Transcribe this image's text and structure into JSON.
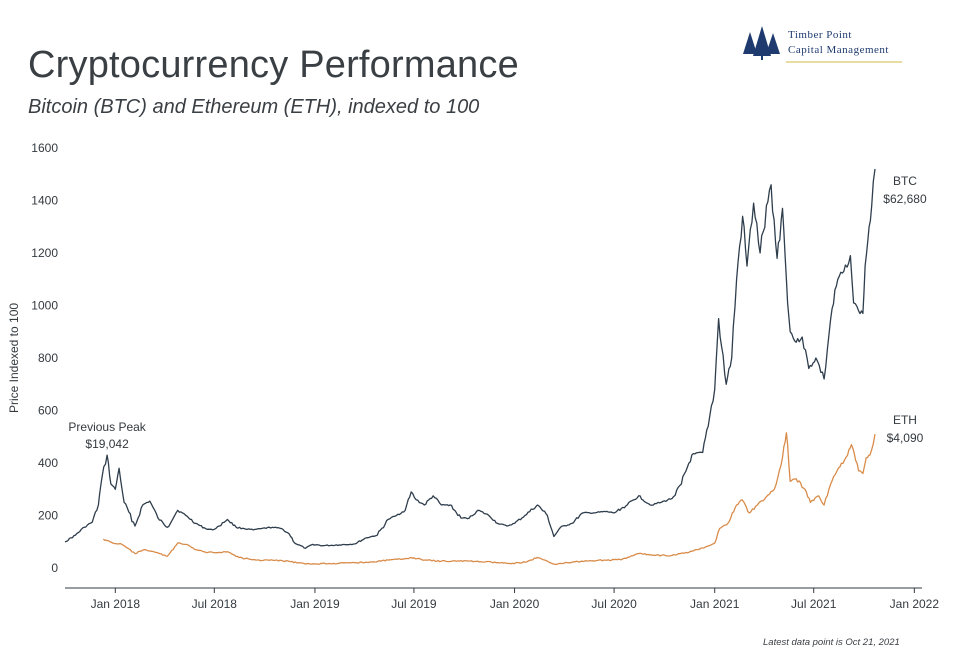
{
  "header": {
    "title": "Cryptocurrency Performance",
    "subtitle": "Bitcoin (BTC) and Ethereum (ETH), indexed to 100"
  },
  "logo": {
    "line1": "Timber Point",
    "line2": "Capital Management",
    "color": "#1e3a6e"
  },
  "footnote": "Latest data point is Oct 21, 2021",
  "chart_data": {
    "type": "line",
    "ylabel": "Price Indexed to 100",
    "xlabel": "",
    "ylim": [
      0,
      1600
    ],
    "yticks": [
      0,
      200,
      400,
      600,
      800,
      1000,
      1200,
      1400,
      1600
    ],
    "xlim": [
      "2017-10-01",
      "2022-01-15"
    ],
    "xticks": [
      {
        "date": "2018-01-01",
        "label": "Jan 2018"
      },
      {
        "date": "2018-07-01",
        "label": "Jul 2018"
      },
      {
        "date": "2019-01-01",
        "label": "Jan 2019"
      },
      {
        "date": "2019-07-01",
        "label": "Jul 2019"
      },
      {
        "date": "2020-01-01",
        "label": "Jan 2020"
      },
      {
        "date": "2020-07-01",
        "label": "Jul 2020"
      },
      {
        "date": "2021-01-01",
        "label": "Jan 2021"
      },
      {
        "date": "2021-07-01",
        "label": "Jul 2021"
      },
      {
        "date": "2022-01-01",
        "label": "Jan 2022"
      }
    ],
    "grid": false,
    "series": [
      {
        "name": "BTC",
        "end_label": "$62,680",
        "color": "#2f3e4d",
        "points": [
          [
            "2017-10-01",
            100
          ],
          [
            "2017-10-20",
            125
          ],
          [
            "2017-11-05",
            155
          ],
          [
            "2017-11-20",
            175
          ],
          [
            "2017-12-01",
            240
          ],
          [
            "2017-12-08",
            350
          ],
          [
            "2017-12-17",
            430
          ],
          [
            "2017-12-24",
            320
          ],
          [
            "2018-01-01",
            300
          ],
          [
            "2018-01-08",
            380
          ],
          [
            "2018-01-17",
            250
          ],
          [
            "2018-02-06",
            160
          ],
          [
            "2018-02-20",
            240
          ],
          [
            "2018-03-05",
            255
          ],
          [
            "2018-03-20",
            190
          ],
          [
            "2018-04-06",
            155
          ],
          [
            "2018-04-25",
            220
          ],
          [
            "2018-05-10",
            200
          ],
          [
            "2018-05-28",
            170
          ],
          [
            "2018-06-15",
            150
          ],
          [
            "2018-06-28",
            145
          ],
          [
            "2018-07-10",
            160
          ],
          [
            "2018-07-25",
            185
          ],
          [
            "2018-08-10",
            155
          ],
          [
            "2018-08-25",
            150
          ],
          [
            "2018-09-10",
            145
          ],
          [
            "2018-09-25",
            150
          ],
          [
            "2018-10-15",
            155
          ],
          [
            "2018-11-01",
            150
          ],
          [
            "2018-11-15",
            130
          ],
          [
            "2018-11-25",
            95
          ],
          [
            "2018-12-15",
            75
          ],
          [
            "2018-12-28",
            90
          ],
          [
            "2019-01-15",
            85
          ],
          [
            "2019-02-15",
            88
          ],
          [
            "2019-03-15",
            92
          ],
          [
            "2019-04-05",
            115
          ],
          [
            "2019-04-25",
            125
          ],
          [
            "2019-05-15",
            185
          ],
          [
            "2019-05-30",
            200
          ],
          [
            "2019-06-15",
            220
          ],
          [
            "2019-06-26",
            290
          ],
          [
            "2019-07-05",
            260
          ],
          [
            "2019-07-20",
            240
          ],
          [
            "2019-08-05",
            275
          ],
          [
            "2019-08-20",
            240
          ],
          [
            "2019-09-05",
            240
          ],
          [
            "2019-09-25",
            190
          ],
          [
            "2019-10-10",
            190
          ],
          [
            "2019-10-26",
            220
          ],
          [
            "2019-11-15",
            200
          ],
          [
            "2019-12-01",
            170
          ],
          [
            "2019-12-18",
            160
          ],
          [
            "2020-01-01",
            170
          ],
          [
            "2020-01-20",
            200
          ],
          [
            "2020-02-12",
            240
          ],
          [
            "2020-03-01",
            200
          ],
          [
            "2020-03-13",
            120
          ],
          [
            "2020-03-25",
            155
          ],
          [
            "2020-04-15",
            170
          ],
          [
            "2020-05-05",
            210
          ],
          [
            "2020-05-25",
            210
          ],
          [
            "2020-06-15",
            215
          ],
          [
            "2020-07-01",
            210
          ],
          [
            "2020-07-25",
            240
          ],
          [
            "2020-08-15",
            275
          ],
          [
            "2020-09-05",
            240
          ],
          [
            "2020-09-25",
            250
          ],
          [
            "2020-10-15",
            265
          ],
          [
            "2020-11-01",
            320
          ],
          [
            "2020-11-20",
            430
          ],
          [
            "2020-12-10",
            440
          ],
          [
            "2020-12-20",
            540
          ],
          [
            "2021-01-01",
            680
          ],
          [
            "2021-01-08",
            950
          ],
          [
            "2021-01-22",
            700
          ],
          [
            "2021-02-01",
            800
          ],
          [
            "2021-02-10",
            1100
          ],
          [
            "2021-02-21",
            1340
          ],
          [
            "2021-03-01",
            1150
          ],
          [
            "2021-03-13",
            1390
          ],
          [
            "2021-03-25",
            1200
          ],
          [
            "2021-04-14",
            1460
          ],
          [
            "2021-04-25",
            1180
          ],
          [
            "2021-05-05",
            1370
          ],
          [
            "2021-05-12",
            1100
          ],
          [
            "2021-05-19",
            900
          ],
          [
            "2021-05-30",
            860
          ],
          [
            "2021-06-10",
            880
          ],
          [
            "2021-06-22",
            760
          ],
          [
            "2021-07-05",
            800
          ],
          [
            "2021-07-20",
            720
          ],
          [
            "2021-08-01",
            950
          ],
          [
            "2021-08-14",
            1100
          ],
          [
            "2021-08-25",
            1130
          ],
          [
            "2021-09-06",
            1190
          ],
          [
            "2021-09-12",
            1010
          ],
          [
            "2021-09-21",
            980
          ],
          [
            "2021-09-29",
            970
          ],
          [
            "2021-10-03",
            1150
          ],
          [
            "2021-10-08",
            1250
          ],
          [
            "2021-10-15",
            1380
          ],
          [
            "2021-10-21",
            1520
          ]
        ]
      },
      {
        "name": "ETH",
        "end_label": "$4,090",
        "color": "#d98c4a",
        "points": [
          [
            "2017-12-10",
            110
          ],
          [
            "2017-12-28",
            95
          ],
          [
            "2018-01-13",
            90
          ],
          [
            "2018-01-20",
            80
          ],
          [
            "2018-02-06",
            55
          ],
          [
            "2018-02-25",
            70
          ],
          [
            "2018-03-15",
            60
          ],
          [
            "2018-04-06",
            45
          ],
          [
            "2018-04-25",
            95
          ],
          [
            "2018-05-10",
            90
          ],
          [
            "2018-05-28",
            70
          ],
          [
            "2018-06-15",
            60
          ],
          [
            "2018-07-10",
            60
          ],
          [
            "2018-07-25",
            62
          ],
          [
            "2018-08-15",
            40
          ],
          [
            "2018-09-15",
            30
          ],
          [
            "2018-10-15",
            30
          ],
          [
            "2018-11-15",
            25
          ],
          [
            "2018-12-15",
            15
          ],
          [
            "2019-01-15",
            17
          ],
          [
            "2019-02-15",
            18
          ],
          [
            "2019-03-15",
            20
          ],
          [
            "2019-04-15",
            23
          ],
          [
            "2019-05-15",
            30
          ],
          [
            "2019-06-15",
            35
          ],
          [
            "2019-06-26",
            40
          ],
          [
            "2019-07-20",
            30
          ],
          [
            "2019-08-20",
            26
          ],
          [
            "2019-09-20",
            27
          ],
          [
            "2019-10-20",
            25
          ],
          [
            "2019-11-20",
            22
          ],
          [
            "2019-12-20",
            17
          ],
          [
            "2020-01-20",
            22
          ],
          [
            "2020-02-12",
            40
          ],
          [
            "2020-03-13",
            15
          ],
          [
            "2020-04-15",
            22
          ],
          [
            "2020-05-15",
            27
          ],
          [
            "2020-06-15",
            30
          ],
          [
            "2020-07-15",
            32
          ],
          [
            "2020-08-15",
            55
          ],
          [
            "2020-09-15",
            48
          ],
          [
            "2020-10-15",
            48
          ],
          [
            "2020-11-15",
            60
          ],
          [
            "2020-12-15",
            80
          ],
          [
            "2021-01-01",
            95
          ],
          [
            "2021-01-10",
            150
          ],
          [
            "2021-01-25",
            170
          ],
          [
            "2021-02-10",
            240
          ],
          [
            "2021-02-20",
            260
          ],
          [
            "2021-03-05",
            210
          ],
          [
            "2021-03-20",
            240
          ],
          [
            "2021-04-05",
            270
          ],
          [
            "2021-04-20",
            300
          ],
          [
            "2021-05-05",
            420
          ],
          [
            "2021-05-12",
            515
          ],
          [
            "2021-05-19",
            330
          ],
          [
            "2021-05-30",
            340
          ],
          [
            "2021-06-15",
            300
          ],
          [
            "2021-06-25",
            250
          ],
          [
            "2021-07-10",
            275
          ],
          [
            "2021-07-20",
            240
          ],
          [
            "2021-08-01",
            320
          ],
          [
            "2021-08-15",
            380
          ],
          [
            "2021-09-01",
            430
          ],
          [
            "2021-09-08",
            470
          ],
          [
            "2021-09-21",
            370
          ],
          [
            "2021-09-29",
            360
          ],
          [
            "2021-10-05",
            420
          ],
          [
            "2021-10-12",
            430
          ],
          [
            "2021-10-21",
            510
          ]
        ]
      }
    ],
    "annotations": [
      {
        "line1": "Previous Peak",
        "line2": "$19,042",
        "x": "2017-12-17",
        "y": 430
      }
    ]
  }
}
